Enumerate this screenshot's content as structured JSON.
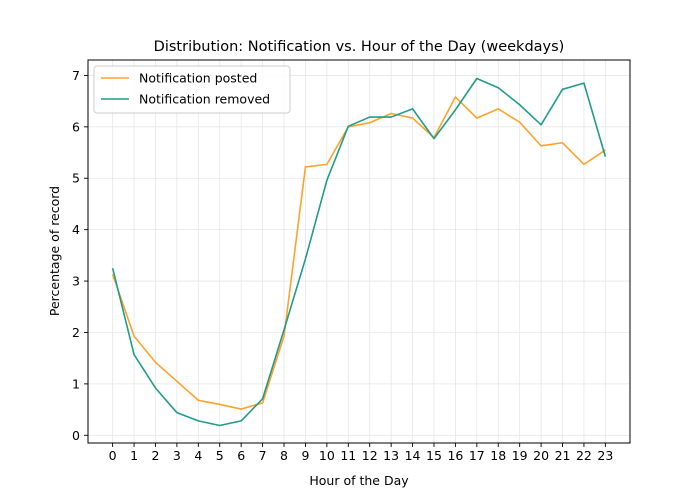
{
  "chart_data": {
    "type": "line",
    "title": "Distribution: Notification vs. Hour of the Day (weekdays)",
    "xlabel": "Hour of the Day",
    "ylabel": "Percentage of record",
    "x": [
      0,
      1,
      2,
      3,
      4,
      5,
      6,
      7,
      8,
      9,
      10,
      11,
      12,
      13,
      14,
      15,
      16,
      17,
      18,
      19,
      20,
      21,
      22,
      23
    ],
    "xlim": [
      -1.15,
      24.15
    ],
    "ylim": [
      -0.15,
      7.3
    ],
    "xticks": [
      0,
      1,
      2,
      3,
      4,
      5,
      6,
      7,
      8,
      9,
      10,
      11,
      12,
      13,
      14,
      15,
      16,
      17,
      18,
      19,
      20,
      21,
      22,
      23
    ],
    "yticks": [
      0,
      1,
      2,
      3,
      4,
      5,
      6,
      7
    ],
    "grid": true,
    "legend_position": "top-left",
    "series": [
      {
        "name": "Notification posted",
        "color": "#ffa22b",
        "values": [
          3.13,
          1.93,
          1.42,
          1.05,
          0.68,
          0.6,
          0.51,
          0.63,
          1.93,
          5.22,
          5.27,
          6.0,
          6.08,
          6.26,
          6.17,
          5.79,
          6.58,
          6.17,
          6.35,
          6.09,
          5.63,
          5.69,
          5.27,
          5.55
        ]
      },
      {
        "name": "Notification removed",
        "color": "#209b8c",
        "values": [
          3.25,
          1.57,
          0.92,
          0.44,
          0.28,
          0.19,
          0.28,
          0.71,
          2.05,
          3.43,
          4.96,
          6.01,
          6.19,
          6.19,
          6.35,
          5.77,
          6.33,
          6.94,
          6.76,
          6.43,
          6.04,
          6.73,
          6.85,
          5.42
        ]
      }
    ]
  }
}
